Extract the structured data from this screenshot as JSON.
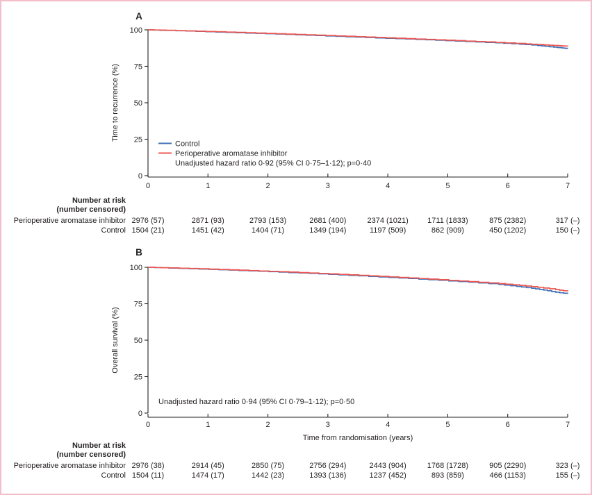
{
  "figure": {
    "type": "kaplan-meier",
    "x_label": "Time from randomisation (years)",
    "x_ticks": [
      "0",
      "1",
      "2",
      "3",
      "4",
      "5",
      "6",
      "7"
    ],
    "y_ticks": [
      "100",
      "75",
      "50",
      "25",
      "0"
    ],
    "colors": {
      "control": "#3f6fb5",
      "treatment": "#ed5751",
      "border": "#f3bdc9",
      "axis": "#231f20"
    }
  },
  "panels": [
    {
      "label": "A",
      "y_label": "Time to recurrence (%)",
      "legend_control": "Control",
      "legend_treatment": "Perioperative aromatase inhibitor",
      "hr_text": "Unadjusted hazard ratio 0·92 (95% CI 0·75–1·12); p=0·40",
      "risk_header_1": "Number at risk",
      "risk_header_2": "(number censored)",
      "risk_rows": [
        {
          "label": "Perioperative aromatase inhibitor",
          "values": [
            "2976 (57)",
            "2871 (93)",
            "2793 (153)",
            "2681 (400)",
            "2374 (1021)",
            "1711 (1833)",
            "875 (2382)",
            "317 (–)"
          ]
        },
        {
          "label": "Control",
          "values": [
            "1504 (21)",
            "1451 (42)",
            "1404 (71)",
            "1349 (194)",
            "1197 (509)",
            "862 (909)",
            "450 (1202)",
            "150 (–)"
          ]
        }
      ]
    },
    {
      "label": "B",
      "y_label": "Overall survival (%)",
      "hr_text": "Unadjusted hazard ratio 0·94 (95% CI 0·79–1·12); p=0·50",
      "risk_header_1": "Number at risk",
      "risk_header_2": "(number censored)",
      "risk_rows": [
        {
          "label": "Perioperative aromatase inhibitor",
          "values": [
            "2976 (38)",
            "2914 (45)",
            "2850 (75)",
            "2756 (294)",
            "2443 (904)",
            "1768 (1728)",
            "905 (2290)",
            "323 (–)"
          ]
        },
        {
          "label": "Control",
          "values": [
            "1504 (11)",
            "1474 (17)",
            "1442 (23)",
            "1393 (136)",
            "1237 (452)",
            "893 (859)",
            "466 (1153)",
            "155 (–)"
          ]
        }
      ]
    }
  ],
  "chart_data": [
    {
      "type": "line",
      "subtype": "kaplan-meier-step",
      "panel": "A",
      "title": "A",
      "xlabel": "Time from randomisation (years)",
      "ylabel": "Time to recurrence (%)",
      "xlim": [
        0,
        7
      ],
      "ylim": [
        0,
        100
      ],
      "x_ticks": [
        0,
        1,
        2,
        3,
        4,
        5,
        6,
        7
      ],
      "y_ticks": [
        0,
        25,
        50,
        75,
        100
      ],
      "grid": false,
      "legend_position": "inside-lower-left",
      "annotation": "Unadjusted hazard ratio 0·92 (95% CI 0·75–1·12); p=0·40",
      "series": [
        {
          "name": "Control",
          "color": "#3f6fb5",
          "points": [
            [
              0,
              100
            ],
            [
              0.3,
              99.6
            ],
            [
              0.8,
              99.0
            ],
            [
              1.3,
              98.3
            ],
            [
              1.8,
              97.6
            ],
            [
              2.3,
              96.9
            ],
            [
              2.8,
              96.1
            ],
            [
              3.3,
              95.3
            ],
            [
              3.8,
              94.5
            ],
            [
              4.3,
              93.7
            ],
            [
              4.8,
              92.9
            ],
            [
              5.3,
              92.0
            ],
            [
              5.8,
              91.1
            ],
            [
              6.2,
              90.2
            ],
            [
              6.5,
              89.3
            ],
            [
              6.7,
              88.4
            ],
            [
              6.9,
              87.6
            ],
            [
              7,
              87.2
            ]
          ]
        },
        {
          "name": "Perioperative aromatase inhibitor",
          "color": "#ed5751",
          "points": [
            [
              0,
              100
            ],
            [
              0.3,
              99.7
            ],
            [
              0.8,
              99.1
            ],
            [
              1.3,
              98.5
            ],
            [
              1.8,
              97.8
            ],
            [
              2.3,
              97.1
            ],
            [
              2.8,
              96.4
            ],
            [
              3.3,
              95.6
            ],
            [
              3.8,
              94.8
            ],
            [
              4.3,
              94.0
            ],
            [
              4.8,
              93.2
            ],
            [
              5.3,
              92.3
            ],
            [
              5.8,
              91.4
            ],
            [
              6.3,
              90.4
            ],
            [
              6.6,
              89.7
            ],
            [
              6.85,
              89.1
            ],
            [
              7,
              88.8
            ]
          ]
        }
      ],
      "number_at_risk": {
        "times": [
          0,
          1,
          2,
          3,
          4,
          5,
          6,
          7
        ],
        "perioperative_aromatase_inhibitor": {
          "at_risk": [
            2976,
            2871,
            2793,
            2681,
            2374,
            1711,
            875,
            317
          ],
          "censored": [
            57,
            93,
            153,
            400,
            1021,
            1833,
            2382,
            null
          ]
        },
        "control": {
          "at_risk": [
            1504,
            1451,
            1404,
            1349,
            1197,
            862,
            450,
            150
          ],
          "censored": [
            21,
            42,
            71,
            194,
            509,
            909,
            1202,
            null
          ]
        }
      }
    },
    {
      "type": "line",
      "subtype": "kaplan-meier-step",
      "panel": "B",
      "title": "B",
      "xlabel": "Time from randomisation (years)",
      "ylabel": "Overall survival (%)",
      "xlim": [
        0,
        7
      ],
      "ylim": [
        0,
        100
      ],
      "x_ticks": [
        0,
        1,
        2,
        3,
        4,
        5,
        6,
        7
      ],
      "y_ticks": [
        0,
        25,
        50,
        75,
        100
      ],
      "grid": false,
      "legend_position": "none",
      "annotation": "Unadjusted hazard ratio 0·94 (95% CI 0·79–1·12); p=0·50",
      "series": [
        {
          "name": "Control",
          "color": "#3f6fb5",
          "points": [
            [
              0,
              100
            ],
            [
              0.35,
              99.5
            ],
            [
              0.85,
              98.8
            ],
            [
              1.35,
              98.1
            ],
            [
              1.85,
              97.3
            ],
            [
              2.35,
              96.4
            ],
            [
              2.85,
              95.5
            ],
            [
              3.35,
              94.5
            ],
            [
              3.85,
              93.4
            ],
            [
              4.35,
              92.3
            ],
            [
              4.85,
              91.1
            ],
            [
              5.35,
              89.8
            ],
            [
              5.85,
              88.3
            ],
            [
              6.15,
              86.9
            ],
            [
              6.4,
              85.6
            ],
            [
              6.6,
              84.4
            ],
            [
              6.8,
              82.9
            ],
            [
              7,
              81.8
            ]
          ]
        },
        {
          "name": "Perioperative aromatase inhibitor",
          "color": "#ed5751",
          "points": [
            [
              0,
              100
            ],
            [
              0.35,
              99.6
            ],
            [
              0.85,
              99.0
            ],
            [
              1.35,
              98.3
            ],
            [
              1.85,
              97.5
            ],
            [
              2.35,
              96.7
            ],
            [
              2.85,
              95.8
            ],
            [
              3.35,
              94.8
            ],
            [
              3.85,
              93.8
            ],
            [
              4.35,
              92.7
            ],
            [
              4.85,
              91.5
            ],
            [
              5.35,
              90.2
            ],
            [
              5.85,
              88.8
            ],
            [
              6.2,
              87.6
            ],
            [
              6.5,
              86.3
            ],
            [
              6.8,
              84.7
            ],
            [
              7,
              83.5
            ]
          ]
        }
      ],
      "number_at_risk": {
        "times": [
          0,
          1,
          2,
          3,
          4,
          5,
          6,
          7
        ],
        "perioperative_aromatase_inhibitor": {
          "at_risk": [
            2976,
            2914,
            2850,
            2756,
            2443,
            1768,
            905,
            323
          ],
          "censored": [
            38,
            45,
            75,
            294,
            904,
            1728,
            2290,
            null
          ]
        },
        "control": {
          "at_risk": [
            1504,
            1474,
            1442,
            1393,
            1237,
            893,
            466,
            155
          ],
          "censored": [
            11,
            17,
            23,
            136,
            452,
            859,
            1153,
            null
          ]
        }
      }
    }
  ]
}
